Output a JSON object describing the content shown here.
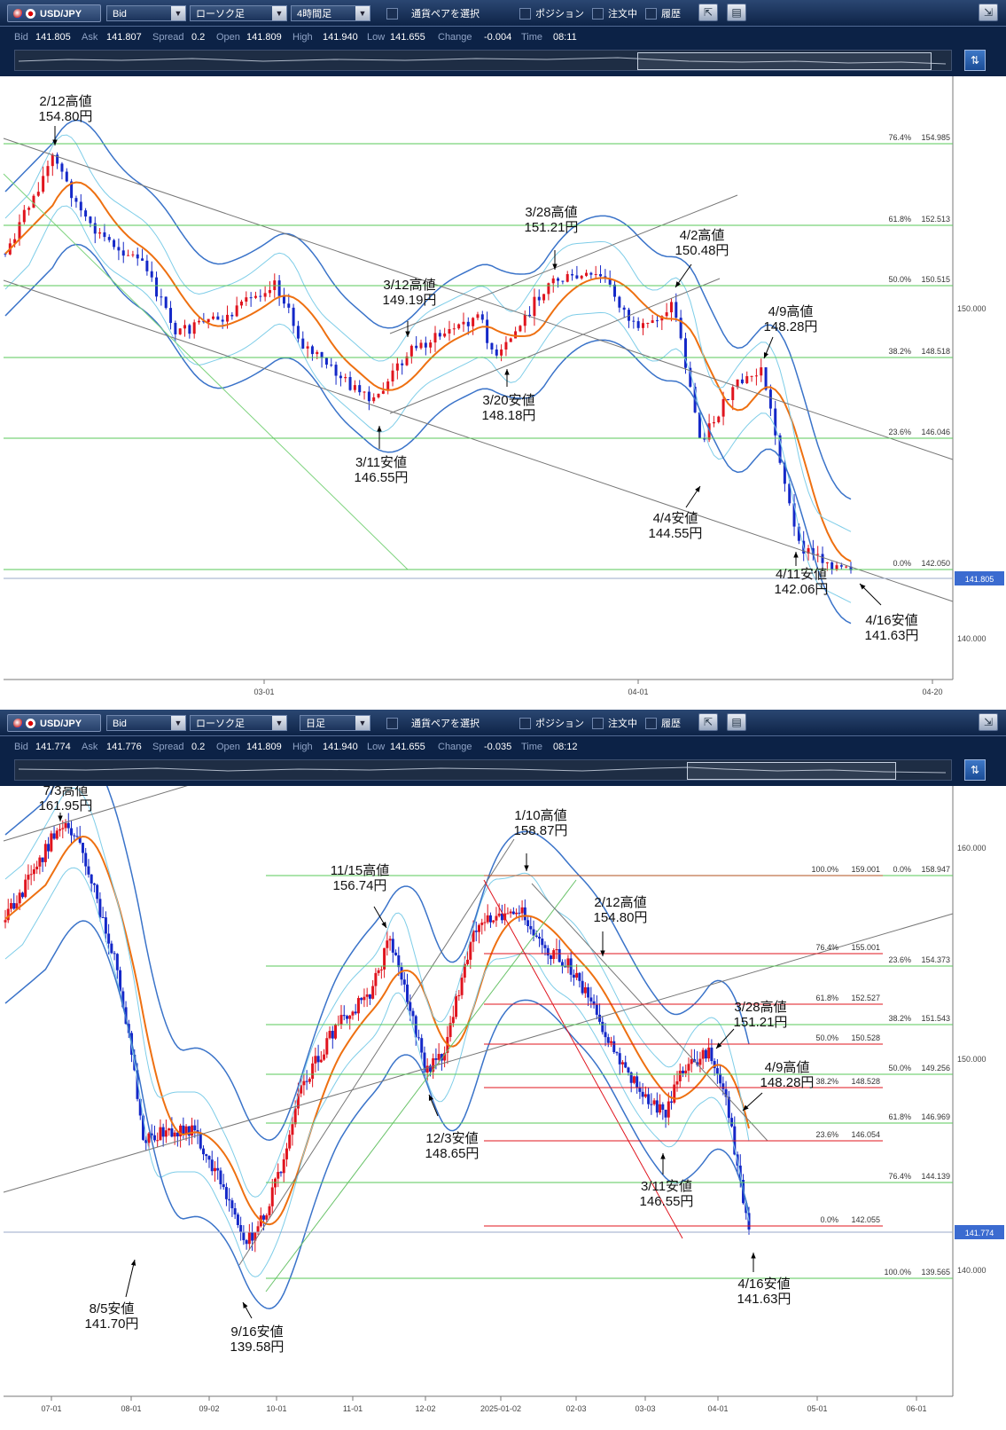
{
  "panels": [
    {
      "symbol": "USD/JPY",
      "price_type": "Bid",
      "chart_type": "ローソク足",
      "timeframe": "4時間足",
      "pair_select": "通貨ペアを選択",
      "positions": "ポジション",
      "orders": "注文中",
      "history": "履歴",
      "quote": {
        "bid_k": "Bid",
        "bid": "141.805",
        "ask_k": "Ask",
        "ask": "141.807",
        "spread_k": "Spread",
        "spread": "0.2",
        "open_k": "Open",
        "open": "141.809",
        "high_k": "High",
        "high": "141.940",
        "low_k": "Low",
        "low": "141.655",
        "change_k": "Change",
        "change": "-0.004",
        "time_k": "Time",
        "time": "08:11"
      },
      "price_labels": [
        "150.000",
        "140.000"
      ],
      "current_price": "141.805",
      "date_labels": [
        "03-01",
        "04-01",
        "04-20"
      ],
      "fib": [
        {
          "pct": "76.4%",
          "val": "154.985"
        },
        {
          "pct": "61.8%",
          "val": "152.513"
        },
        {
          "pct": "50.0%",
          "val": "150.515"
        },
        {
          "pct": "38.2%",
          "val": "148.518"
        },
        {
          "pct": "23.6%",
          "val": "146.046"
        },
        {
          "pct": "0.0%",
          "val": "142.050"
        }
      ],
      "annotations": [
        {
          "l1": "2/12高値",
          "l2": "154.80円"
        },
        {
          "l1": "3/12高値",
          "l2": "149.19円"
        },
        {
          "l1": "3/28高値",
          "l2": "151.21円"
        },
        {
          "l1": "4/2高値",
          "l2": "150.48円"
        },
        {
          "l1": "4/9高値",
          "l2": "148.28円"
        },
        {
          "l1": "3/20安値",
          "l2": "148.18円"
        },
        {
          "l1": "3/11安値",
          "l2": "146.55円"
        },
        {
          "l1": "4/4安値",
          "l2": "144.55円"
        },
        {
          "l1": "4/11安値",
          "l2": "142.06円"
        },
        {
          "l1": "4/16安値",
          "l2": "141.63円"
        }
      ]
    },
    {
      "symbol": "USD/JPY",
      "price_type": "Bid",
      "chart_type": "ローソク足",
      "timeframe": "日足",
      "pair_select": "通貨ペアを選択",
      "positions": "ポジション",
      "orders": "注文中",
      "history": "履歴",
      "quote": {
        "bid_k": "Bid",
        "bid": "141.774",
        "ask_k": "Ask",
        "ask": "141.776",
        "spread_k": "Spread",
        "spread": "0.2",
        "open_k": "Open",
        "open": "141.809",
        "high_k": "High",
        "high": "141.940",
        "low_k": "Low",
        "low": "141.655",
        "change_k": "Change",
        "change": "-0.035",
        "time_k": "Time",
        "time": "08:12"
      },
      "price_labels": [
        "160.000",
        "150.000",
        "140.000"
      ],
      "current_price": "141.774",
      "date_labels": [
        "07-01",
        "08-01",
        "09-02",
        "10-01",
        "11-01",
        "12-02",
        "2025-01-02",
        "02-03",
        "03-03",
        "04-01",
        "05-01",
        "06-01"
      ],
      "fib_green": [
        {
          "pct": "0.0%",
          "val": "158.947"
        },
        {
          "pct": "23.6%",
          "val": "154.373"
        },
        {
          "pct": "38.2%",
          "val": "151.543"
        },
        {
          "pct": "50.0%",
          "val": "149.256"
        },
        {
          "pct": "61.8%",
          "val": "146.969"
        },
        {
          "pct": "76.4%",
          "val": "144.139"
        },
        {
          "pct": "100.0%",
          "val": "139.565"
        }
      ],
      "fib_red": [
        {
          "pct": "100.0%",
          "val": "159.001"
        },
        {
          "pct": "76.4%",
          "val": "155.001"
        },
        {
          "pct": "61.8%",
          "val": "152.527"
        },
        {
          "pct": "50.0%",
          "val": "150.528"
        },
        {
          "pct": "38.2%",
          "val": "148.528"
        },
        {
          "pct": "23.6%",
          "val": "146.054"
        },
        {
          "pct": "0.0%",
          "val": "142.055"
        }
      ],
      "annotations": [
        {
          "l1": "7/3高値",
          "l2": "161.95円"
        },
        {
          "l1": "1/10高値",
          "l2": "158.87円"
        },
        {
          "l1": "11/15高値",
          "l2": "156.74円"
        },
        {
          "l1": "2/12高値",
          "l2": "154.80円"
        },
        {
          "l1": "3/28高値",
          "l2": "151.21円"
        },
        {
          "l1": "4/9高値",
          "l2": "148.28円"
        },
        {
          "l1": "12/3安値",
          "l2": "148.65円"
        },
        {
          "l1": "3/11安値",
          "l2": "146.55円"
        },
        {
          "l1": "8/5安値",
          "l2": "141.70円"
        },
        {
          "l1": "9/16安値",
          "l2": "139.58円"
        },
        {
          "l1": "4/16安値",
          "l2": "141.63円"
        }
      ]
    }
  ]
}
